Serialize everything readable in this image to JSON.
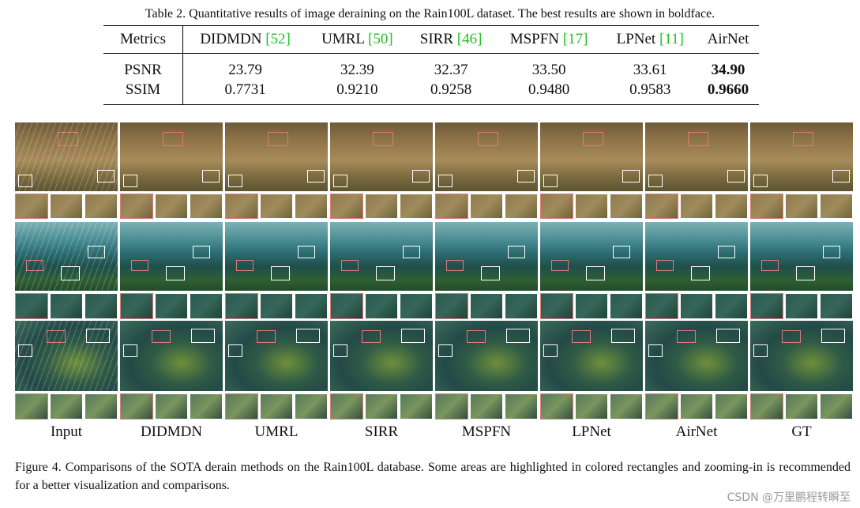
{
  "table": {
    "caption": "Table 2. Quantitative results of image deraining on the Rain100L dataset. The best results are shown in boldface.",
    "header_first": "Metrics",
    "methods": [
      {
        "name": "DIDMDN",
        "ref": "[52]"
      },
      {
        "name": "UMRL",
        "ref": "[50]"
      },
      {
        "name": "SIRR",
        "ref": "[46]"
      },
      {
        "name": "MSPFN",
        "ref": "[17]"
      },
      {
        "name": "LPNet",
        "ref": "[11]"
      },
      {
        "name": "AirNet",
        "ref": ""
      }
    ],
    "rows": [
      {
        "metric": "PSNR",
        "values": [
          "23.79",
          "32.39",
          "32.37",
          "33.50",
          "33.61",
          "34.90"
        ]
      },
      {
        "metric": "SSIM",
        "values": [
          "0.7731",
          "0.9210",
          "0.9258",
          "0.9480",
          "0.9583",
          "0.9660"
        ]
      }
    ],
    "ref_color": "#22c02a"
  },
  "figure": {
    "columns": [
      "Input",
      "DIDMDN",
      "UMRL",
      "SIRR",
      "MSPFN",
      "LPNet",
      "AirNet",
      "GT"
    ],
    "caption": "Figure 4.  Comparisons of the SOTA derain methods on the Rain100L database. Some areas are highlighted in colored rectangles and zooming-in is recommended for a better visualization and comparisons."
  },
  "watermark": "CSDN @万里鹏程转瞬至"
}
